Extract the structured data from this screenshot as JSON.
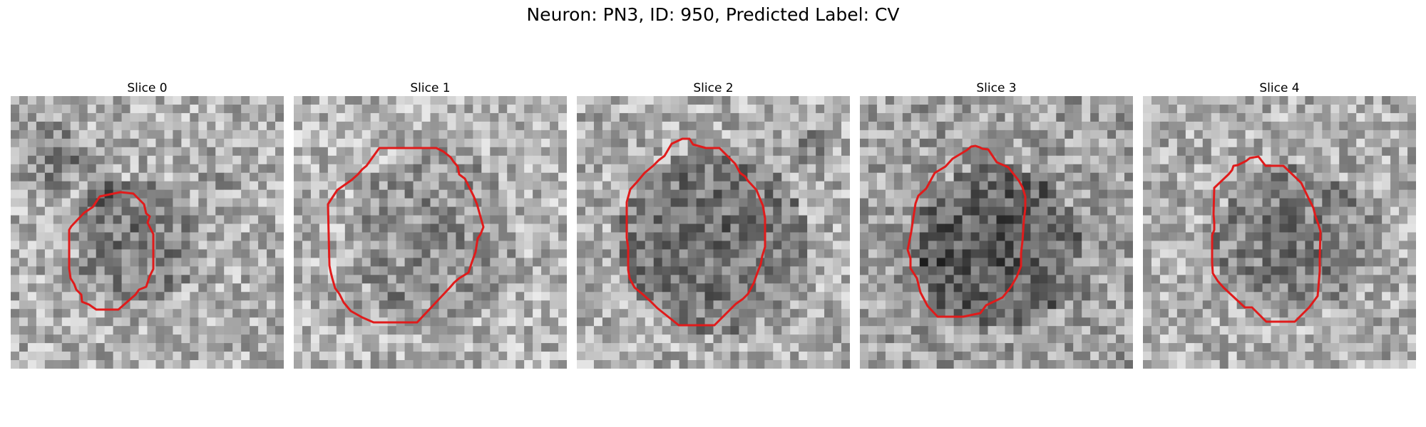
{
  "figure": {
    "title": "Neuron: PN3, ID: 950, Predicted Label: CV"
  },
  "panels": [
    {
      "title": "Slice 0"
    },
    {
      "title": "Slice 1"
    },
    {
      "title": "Slice 2"
    },
    {
      "title": "Slice 3"
    },
    {
      "title": "Slice 4"
    }
  ],
  "overlay_color": "#e01b1b",
  "image_colormap": "grayscale"
}
